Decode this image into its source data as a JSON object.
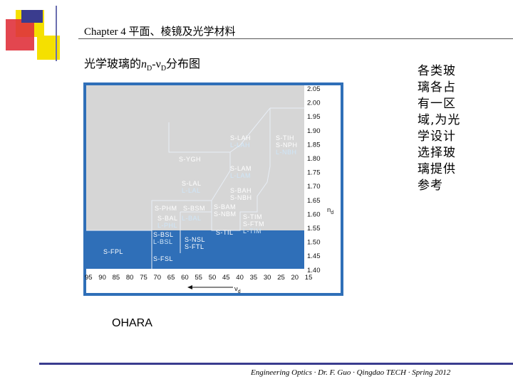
{
  "header": {
    "chapter_title": "Chapter 4  平面、棱镜及光学材料",
    "slide_heading_prefix": "光学玻璃的",
    "slide_heading_n": "n",
    "slide_heading_d1": "D",
    "slide_heading_mid": "-ν",
    "slide_heading_d2": "D",
    "slide_heading_suffix": "分布图"
  },
  "side_note": "各类玻璃各占有一区域,为光学设计选择玻璃提供参考",
  "maker": "OHARA",
  "footer": {
    "credit": "Engineering Optics · Dr. F. Guo · Qingdao TECH · Spring 2012"
  },
  "colors": {
    "deco_yellow": "#f5e000",
    "deco_red": "#e0323c",
    "deco_blue": "#3a3c8e",
    "chart_gray": "#d6d6d6",
    "chart_blue": "#2f6fb8",
    "label_white": "#ffffff",
    "label_light": "#cfe6f8"
  },
  "chart_data": {
    "type": "diagram",
    "x_axis": {
      "label": "ν",
      "subscript": "d",
      "reversed": true,
      "ticks": [
        "95",
        "90",
        "85",
        "80",
        "75",
        "70",
        "65",
        "60",
        "55",
        "50",
        "45",
        "40",
        "35",
        "30",
        "25",
        "20",
        "15"
      ]
    },
    "y_axis": {
      "label": "n",
      "subscript": "d",
      "ticks": [
        "2.05",
        "2.00",
        "1.95",
        "1.90",
        "1.85",
        "1.80",
        "1.75",
        "1.70",
        "1.65",
        "1.60",
        "1.55",
        "1.50",
        "1.45",
        "1.40"
      ]
    },
    "regions": [
      {
        "name": "S-LAH",
        "sub": "L-LAH"
      },
      {
        "name": "S-TIH",
        "sub": "S-NPH",
        "sub2": "L-NBH"
      },
      {
        "name": "S-YGH"
      },
      {
        "name": "S-LAM",
        "sub": "L-LAM"
      },
      {
        "name": "S-LAL",
        "sub": "L-LAL"
      },
      {
        "name": "S-BAH",
        "sub": "S-NBH"
      },
      {
        "name": "S-PHM"
      },
      {
        "name": "S-BSM"
      },
      {
        "name": "S-BAM",
        "sub": "S-NBM"
      },
      {
        "name": "S-BAL",
        "sub": "L-BAL"
      },
      {
        "name": "L-PHL"
      },
      {
        "name": "S-TIM",
        "sub": "S-FTM",
        "sub2": "L-TIM"
      },
      {
        "name": "S-BSL",
        "sub": "L-BSL"
      },
      {
        "name": "S-NSL",
        "sub": "S-FTL"
      },
      {
        "name": "S-TIL"
      },
      {
        "name": "S-FPL"
      },
      {
        "name": "S-FSL"
      }
    ]
  }
}
